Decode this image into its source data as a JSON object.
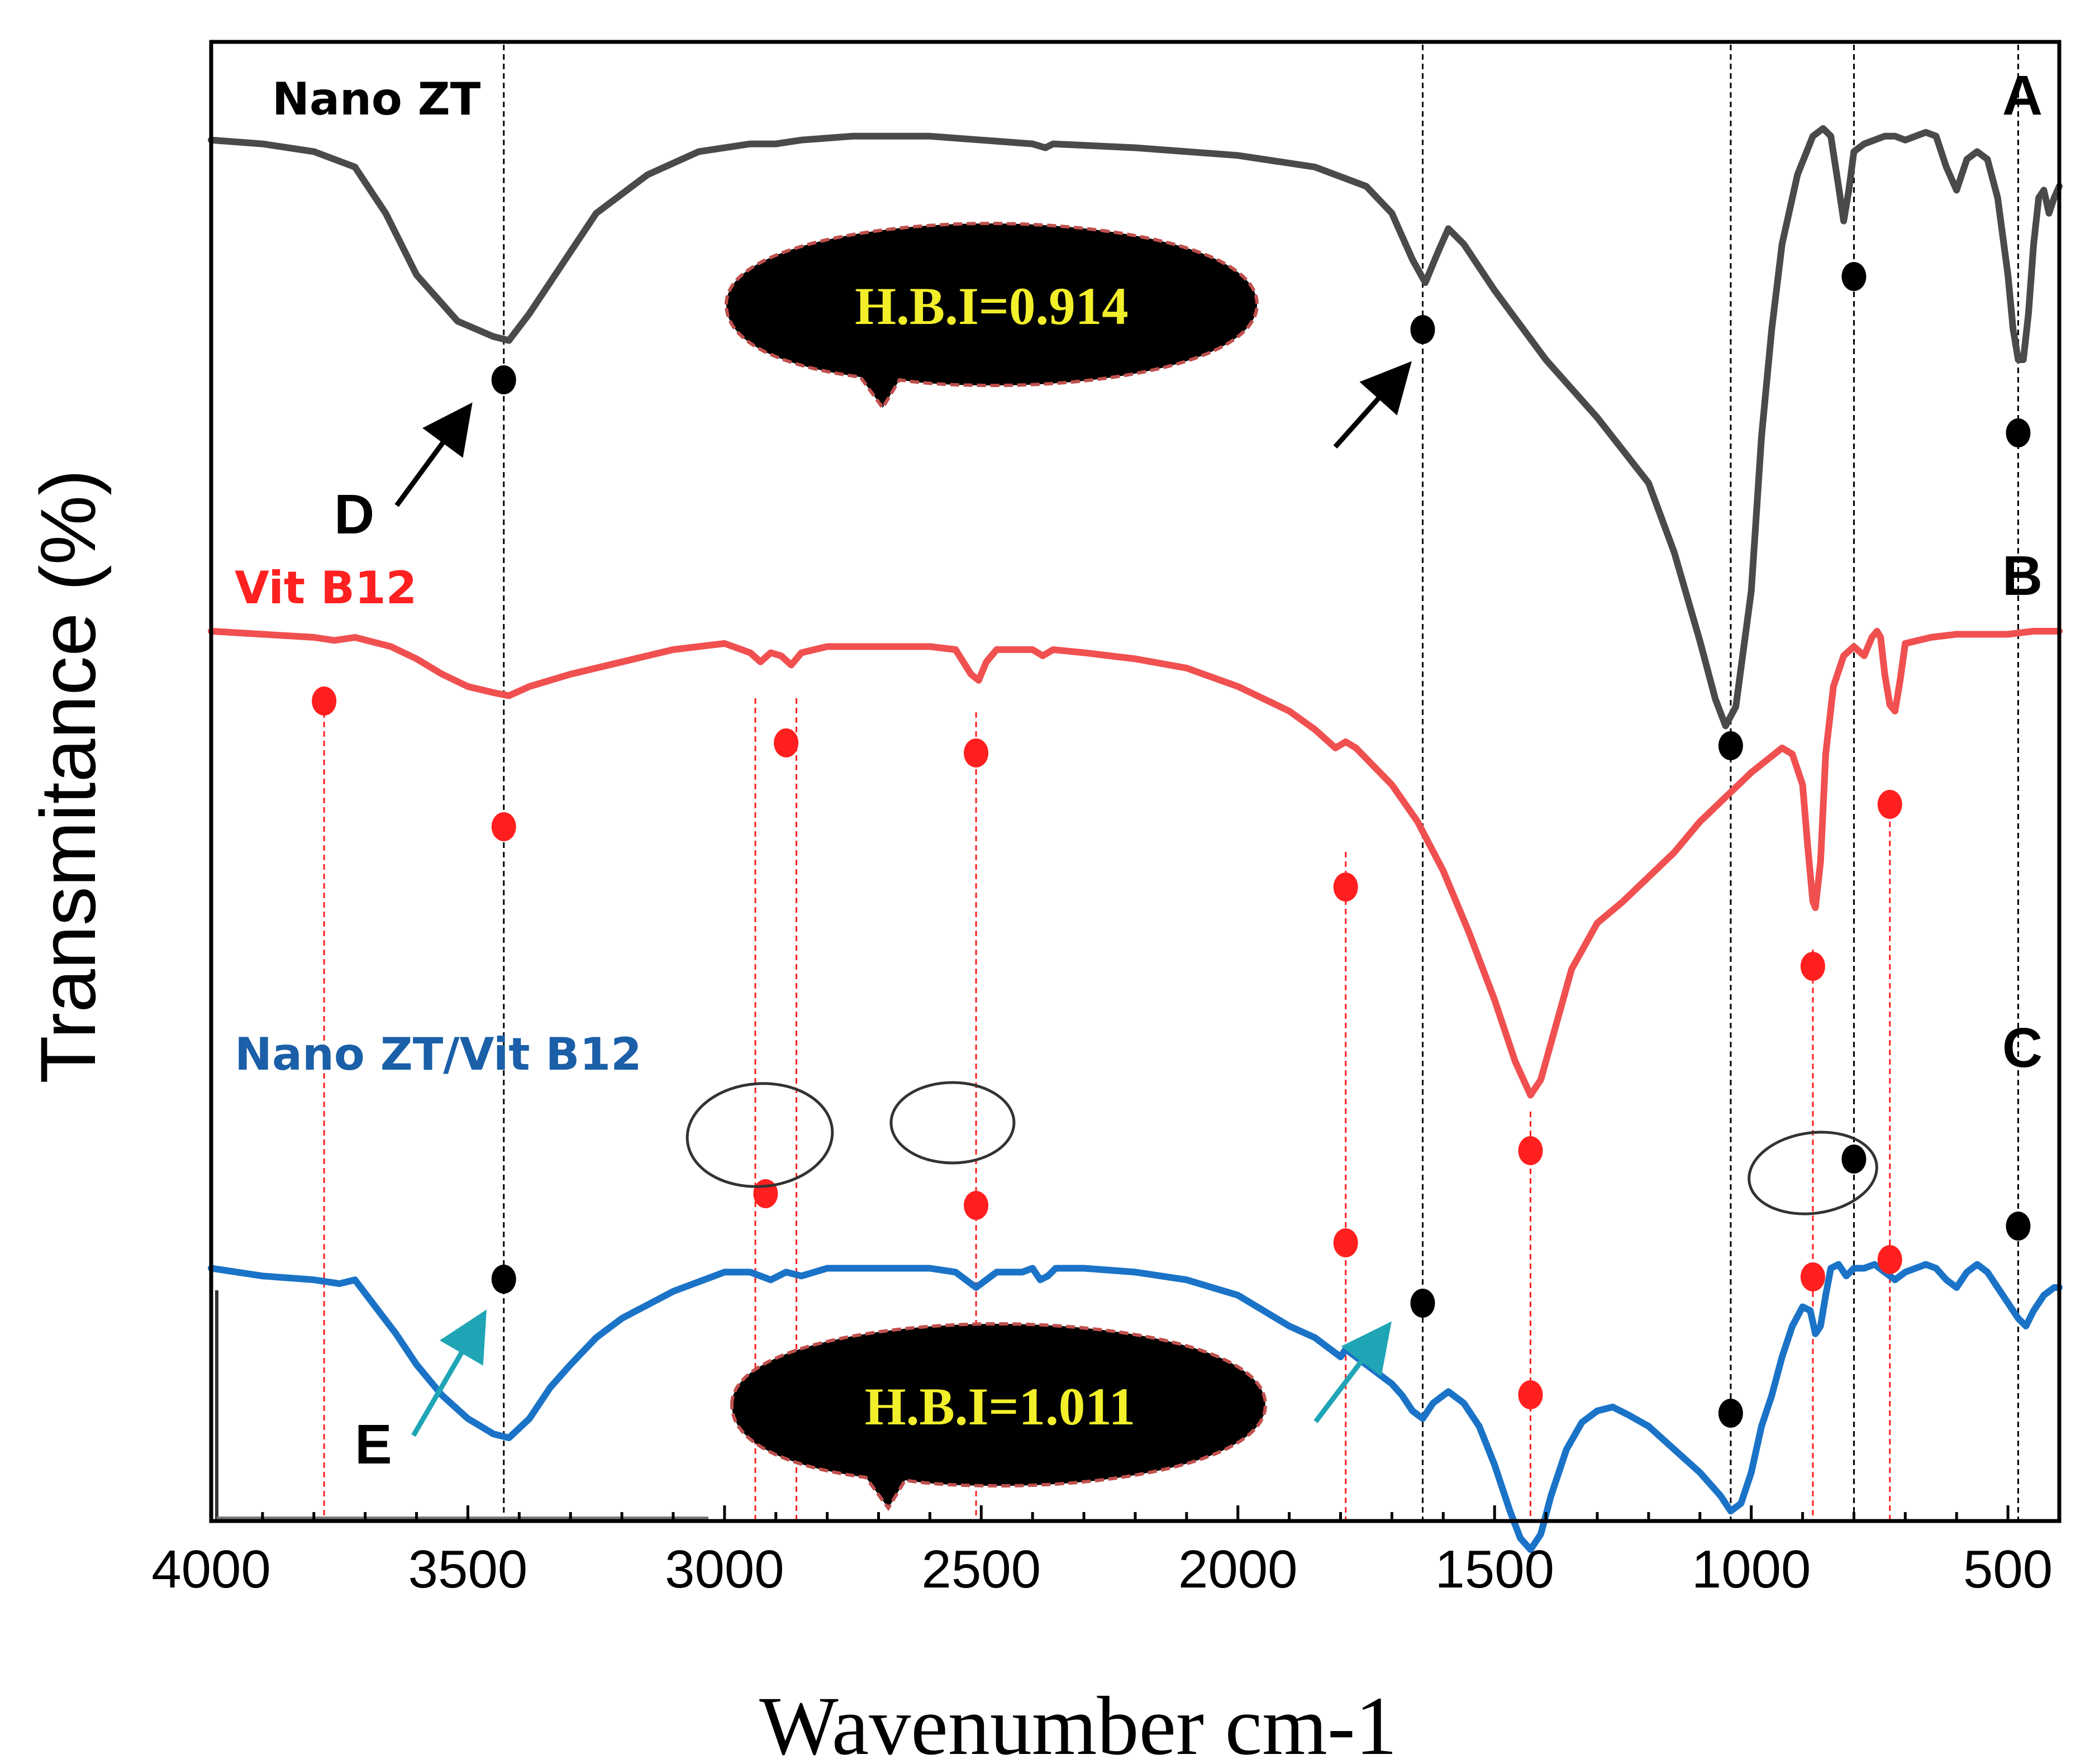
{
  "chart_data": {
    "type": "line",
    "xlabel": "Wavenumber cm-1",
    "ylabel": "Transmitance (%)",
    "xlim": [
      4000,
      400
    ],
    "x_ticks": [
      "4000",
      "3500",
      "3000",
      "2500",
      "2000",
      "1500",
      "1000",
      "500"
    ],
    "x_tick_values": [
      4000,
      3500,
      3000,
      2500,
      2000,
      1500,
      1000,
      500
    ],
    "series": [
      {
        "name": "Nano ZT",
        "letter": "A",
        "color": "#4a4a4a",
        "points": [
          [
            4000,
            3
          ],
          [
            3900,
            4
          ],
          [
            3800,
            6
          ],
          [
            3720,
            10
          ],
          [
            3660,
            22
          ],
          [
            3600,
            38
          ],
          [
            3520,
            50
          ],
          [
            3450,
            54
          ],
          [
            3420,
            55
          ],
          [
            3380,
            48
          ],
          [
            3320,
            36
          ],
          [
            3250,
            22
          ],
          [
            3150,
            12
          ],
          [
            3050,
            6
          ],
          [
            2950,
            4
          ],
          [
            2900,
            4
          ],
          [
            2850,
            3
          ],
          [
            2750,
            2
          ],
          [
            2600,
            2
          ],
          [
            2500,
            3
          ],
          [
            2400,
            4
          ],
          [
            2375,
            5
          ],
          [
            2360,
            4
          ],
          [
            2200,
            5
          ],
          [
            2000,
            7
          ],
          [
            1850,
            10
          ],
          [
            1750,
            15
          ],
          [
            1700,
            22
          ],
          [
            1660,
            34
          ],
          [
            1635,
            40
          ],
          [
            1610,
            32
          ],
          [
            1590,
            26
          ],
          [
            1560,
            30
          ],
          [
            1500,
            42
          ],
          [
            1400,
            60
          ],
          [
            1300,
            75
          ],
          [
            1200,
            92
          ],
          [
            1150,
            110
          ],
          [
            1100,
            133
          ],
          [
            1070,
            148
          ],
          [
            1050,
            155
          ],
          [
            1030,
            150
          ],
          [
            1000,
            120
          ],
          [
            980,
            80
          ],
          [
            960,
            52
          ],
          [
            940,
            30
          ],
          [
            910,
            12
          ],
          [
            880,
            2
          ],
          [
            860,
            0
          ],
          [
            845,
            2
          ],
          [
            830,
            15
          ],
          [
            820,
            24
          ],
          [
            810,
            16
          ],
          [
            800,
            6
          ],
          [
            780,
            4
          ],
          [
            760,
            3
          ],
          [
            740,
            2
          ],
          [
            720,
            2
          ],
          [
            700,
            3
          ],
          [
            680,
            2
          ],
          [
            660,
            1
          ],
          [
            640,
            2
          ],
          [
            620,
            10
          ],
          [
            600,
            16
          ],
          [
            580,
            8
          ],
          [
            560,
            6
          ],
          [
            540,
            8
          ],
          [
            520,
            18
          ],
          [
            500,
            38
          ],
          [
            490,
            52
          ],
          [
            480,
            60
          ],
          [
            470,
            60
          ],
          [
            460,
            48
          ],
          [
            450,
            30
          ],
          [
            440,
            18
          ],
          [
            430,
            16
          ],
          [
            420,
            22
          ],
          [
            410,
            18
          ],
          [
            400,
            15
          ]
        ]
      },
      {
        "name": "Vit B12",
        "letter": "B",
        "color": "#f05050",
        "points": [
          [
            4000,
            0
          ],
          [
            3900,
            1
          ],
          [
            3800,
            2
          ],
          [
            3760,
            3
          ],
          [
            3720,
            2
          ],
          [
            3650,
            5
          ],
          [
            3600,
            9
          ],
          [
            3550,
            14
          ],
          [
            3500,
            18
          ],
          [
            3450,
            20
          ],
          [
            3420,
            21
          ],
          [
            3380,
            18
          ],
          [
            3300,
            14
          ],
          [
            3200,
            10
          ],
          [
            3100,
            6
          ],
          [
            3000,
            4
          ],
          [
            2950,
            7
          ],
          [
            2930,
            10
          ],
          [
            2910,
            7
          ],
          [
            2890,
            8
          ],
          [
            2870,
            11
          ],
          [
            2850,
            7
          ],
          [
            2800,
            5
          ],
          [
            2700,
            5
          ],
          [
            2600,
            5
          ],
          [
            2550,
            6
          ],
          [
            2520,
            14
          ],
          [
            2505,
            16
          ],
          [
            2490,
            10
          ],
          [
            2470,
            6
          ],
          [
            2400,
            6
          ],
          [
            2380,
            8
          ],
          [
            2360,
            6
          ],
          [
            2300,
            7
          ],
          [
            2200,
            9
          ],
          [
            2100,
            12
          ],
          [
            2000,
            18
          ],
          [
            1900,
            26
          ],
          [
            1850,
            32
          ],
          [
            1810,
            38
          ],
          [
            1790,
            36
          ],
          [
            1770,
            38
          ],
          [
            1700,
            50
          ],
          [
            1650,
            62
          ],
          [
            1600,
            78
          ],
          [
            1550,
            98
          ],
          [
            1500,
            120
          ],
          [
            1460,
            140
          ],
          [
            1430,
            151
          ],
          [
            1410,
            146
          ],
          [
            1380,
            128
          ],
          [
            1350,
            110
          ],
          [
            1300,
            95
          ],
          [
            1250,
            88
          ],
          [
            1200,
            80
          ],
          [
            1150,
            72
          ],
          [
            1100,
            62
          ],
          [
            1050,
            54
          ],
          [
            1000,
            46
          ],
          [
            970,
            42
          ],
          [
            940,
            38
          ],
          [
            920,
            40
          ],
          [
            900,
            50
          ],
          [
            890,
            70
          ],
          [
            880,
            88
          ],
          [
            875,
            90
          ],
          [
            865,
            75
          ],
          [
            855,
            40
          ],
          [
            840,
            18
          ],
          [
            820,
            8
          ],
          [
            800,
            5
          ],
          [
            780,
            8
          ],
          [
            765,
            2
          ],
          [
            755,
            0
          ],
          [
            748,
            2
          ],
          [
            740,
            14
          ],
          [
            730,
            24
          ],
          [
            720,
            26
          ],
          [
            710,
            16
          ],
          [
            700,
            4
          ],
          [
            650,
            2
          ],
          [
            600,
            1
          ],
          [
            550,
            1
          ],
          [
            500,
            1
          ],
          [
            450,
            0
          ],
          [
            400,
            0
          ]
        ]
      },
      {
        "name": "Nano ZT/Vit B12",
        "letter": "C",
        "color": "#1a73c7",
        "points": [
          [
            4000,
            45
          ],
          [
            3900,
            47
          ],
          [
            3800,
            48
          ],
          [
            3750,
            49
          ],
          [
            3720,
            48
          ],
          [
            3680,
            55
          ],
          [
            3640,
            62
          ],
          [
            3600,
            70
          ],
          [
            3550,
            78
          ],
          [
            3500,
            84
          ],
          [
            3450,
            88
          ],
          [
            3420,
            89
          ],
          [
            3380,
            84
          ],
          [
            3340,
            76
          ],
          [
            3300,
            70
          ],
          [
            3250,
            63
          ],
          [
            3200,
            58
          ],
          [
            3100,
            51
          ],
          [
            3000,
            46
          ],
          [
            2950,
            46
          ],
          [
            2910,
            48
          ],
          [
            2880,
            46
          ],
          [
            2850,
            47
          ],
          [
            2800,
            45
          ],
          [
            2750,
            45
          ],
          [
            2700,
            45
          ],
          [
            2600,
            45
          ],
          [
            2550,
            46
          ],
          [
            2530,
            48
          ],
          [
            2510,
            50
          ],
          [
            2490,
            48
          ],
          [
            2470,
            46
          ],
          [
            2420,
            46
          ],
          [
            2400,
            45
          ],
          [
            2385,
            48
          ],
          [
            2370,
            47
          ],
          [
            2355,
            45
          ],
          [
            2300,
            45
          ],
          [
            2200,
            46
          ],
          [
            2100,
            48
          ],
          [
            2000,
            52
          ],
          [
            1950,
            56
          ],
          [
            1900,
            60
          ],
          [
            1850,
            63
          ],
          [
            1820,
            66
          ],
          [
            1800,
            68
          ],
          [
            1790,
            66
          ],
          [
            1770,
            68
          ],
          [
            1730,
            72
          ],
          [
            1700,
            75
          ],
          [
            1680,
            78
          ],
          [
            1660,
            82
          ],
          [
            1640,
            84
          ],
          [
            1620,
            80
          ],
          [
            1590,
            77
          ],
          [
            1560,
            80
          ],
          [
            1530,
            86
          ],
          [
            1500,
            96
          ],
          [
            1470,
            108
          ],
          [
            1450,
            115
          ],
          [
            1430,
            118
          ],
          [
            1410,
            114
          ],
          [
            1390,
            104
          ],
          [
            1360,
            92
          ],
          [
            1330,
            85
          ],
          [
            1300,
            82
          ],
          [
            1270,
            81
          ],
          [
            1240,
            83
          ],
          [
            1200,
            86
          ],
          [
            1150,
            92
          ],
          [
            1100,
            98
          ],
          [
            1060,
            104
          ],
          [
            1040,
            108
          ],
          [
            1020,
            106
          ],
          [
            1000,
            98
          ],
          [
            980,
            86
          ],
          [
            960,
            78
          ],
          [
            940,
            68
          ],
          [
            920,
            60
          ],
          [
            900,
            55
          ],
          [
            885,
            56
          ],
          [
            875,
            62
          ],
          [
            865,
            60
          ],
          [
            855,
            52
          ],
          [
            845,
            45
          ],
          [
            830,
            44
          ],
          [
            815,
            47
          ],
          [
            800,
            45
          ],
          [
            780,
            45
          ],
          [
            760,
            44
          ],
          [
            740,
            46
          ],
          [
            720,
            48
          ],
          [
            700,
            46
          ],
          [
            680,
            45
          ],
          [
            660,
            44
          ],
          [
            640,
            45
          ],
          [
            620,
            48
          ],
          [
            600,
            50
          ],
          [
            580,
            46
          ],
          [
            560,
            44
          ],
          [
            540,
            46
          ],
          [
            520,
            50
          ],
          [
            500,
            54
          ],
          [
            480,
            58
          ],
          [
            465,
            60
          ],
          [
            450,
            56
          ],
          [
            430,
            52
          ],
          [
            410,
            50
          ],
          [
            400,
            50
          ]
        ]
      }
    ],
    "annotations": {
      "bubble_top": "H.B.I=0.914",
      "bubble_bottom": "H.B.I=1.011",
      "arrow_label_d": "D",
      "arrow_label_e": "E"
    },
    "marker_colors": {
      "black": "#000000",
      "red": "#ff1f1f",
      "cyan_arrow": "#1fa5b5",
      "bubble_text": "#f2ef2a"
    }
  }
}
